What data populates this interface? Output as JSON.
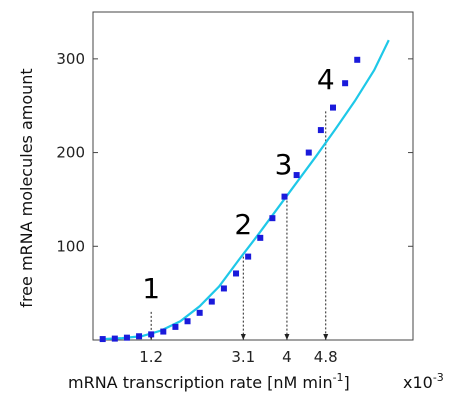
{
  "chart_data": {
    "type": "line",
    "xlabel": "mRNA transcription rate [nM min",
    "xlabel_sup": "-1",
    "xlabel_tail": "]",
    "x_scale_label": "x10",
    "x_scale_sup": "-3",
    "ylabel": "free mRNA molecules amount",
    "xlim": [
      0.0,
      6.6
    ],
    "ylim": [
      0,
      350
    ],
    "y_ticks": [
      100,
      200,
      300
    ],
    "x_ticks": [
      1.2,
      3.1,
      4.0,
      4.8
    ],
    "grid": false,
    "series": [
      {
        "style": "line",
        "color": "#1ec8e8",
        "x": [
          0.2,
          0.6,
          1.0,
          1.4,
          1.8,
          2.2,
          2.6,
          3.0,
          3.4,
          3.8,
          4.2,
          4.6,
          5.0,
          5.4,
          5.8,
          6.1
        ],
        "y": [
          1,
          2,
          4,
          10,
          20,
          36,
          57,
          85,
          112,
          140,
          168,
          196,
          225,
          255,
          288,
          320
        ]
      },
      {
        "style": "markers",
        "color": "#1a1adb",
        "x": [
          0.2,
          0.45,
          0.7,
          0.95,
          1.2,
          1.45,
          1.7,
          1.95,
          2.2,
          2.45,
          2.7,
          2.95,
          3.2,
          3.45,
          3.7,
          3.95,
          4.2,
          4.45,
          4.7,
          4.95,
          5.2,
          5.45
        ],
        "y": [
          1,
          1.5,
          2.5,
          4,
          6,
          9,
          14,
          20,
          29,
          41,
          55,
          71,
          89,
          109,
          130,
          153,
          176,
          200,
          224,
          248,
          274,
          299
        ]
      }
    ],
    "annotations": [
      {
        "label": "1",
        "x": 1.2,
        "y": 30,
        "label_x": 1.2,
        "label_y": 45
      },
      {
        "label": "2",
        "x": 3.1,
        "y": 89,
        "label_x": 3.1,
        "label_y": 113
      },
      {
        "label": "3",
        "x": 4.0,
        "y": 153,
        "label_x": 3.93,
        "label_y": 177
      },
      {
        "label": "4",
        "x": 4.8,
        "y": 244,
        "label_x": 4.8,
        "label_y": 268
      }
    ]
  }
}
